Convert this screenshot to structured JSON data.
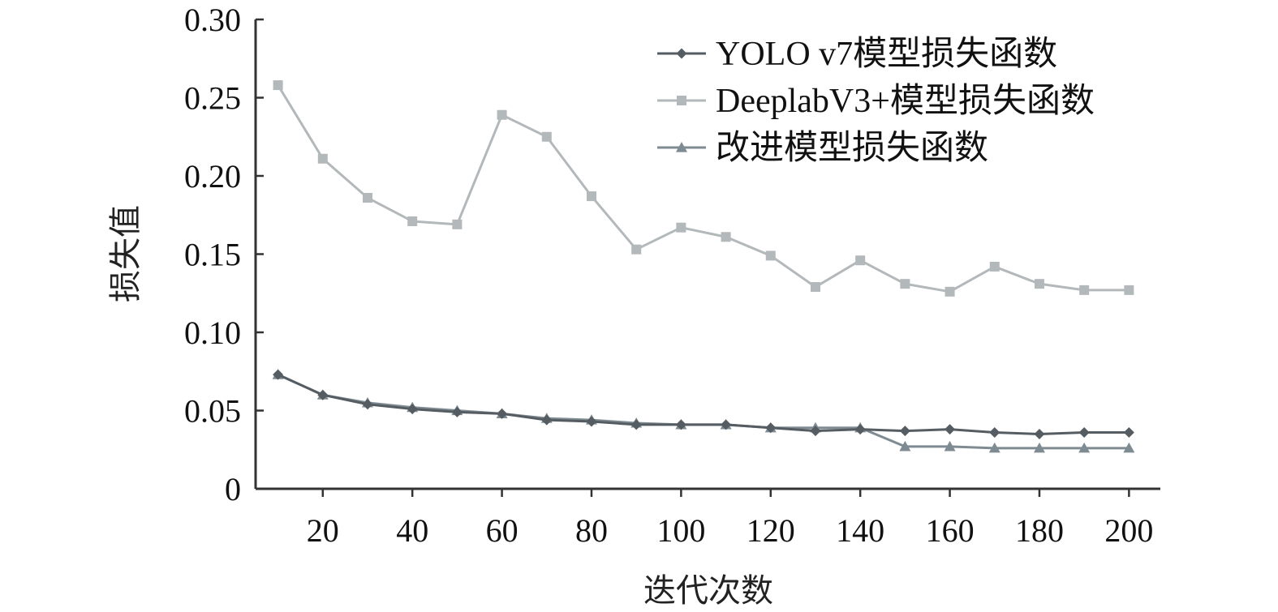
{
  "chart_data": {
    "type": "line",
    "title": "",
    "xlabel": "迭代次数",
    "ylabel": "损失值",
    "xlim": [
      5,
      207
    ],
    "ylim": [
      0,
      0.3
    ],
    "x_ticks": [
      20,
      40,
      60,
      80,
      100,
      120,
      140,
      160,
      180,
      200
    ],
    "x_tick_labels": [
      "20",
      "40",
      "60",
      "80",
      "100",
      "120",
      "140",
      "160",
      "180",
      "200"
    ],
    "y_ticks": [
      0,
      0.05,
      0.1,
      0.15,
      0.2,
      0.25,
      0.3
    ],
    "y_tick_labels": [
      "0",
      "0.05",
      "0.10",
      "0.15",
      "0.20",
      "0.25",
      "0.30"
    ],
    "grid": false,
    "legend_position": "top-right",
    "x": [
      10,
      20,
      30,
      40,
      50,
      60,
      70,
      80,
      90,
      100,
      110,
      120,
      130,
      140,
      150,
      160,
      170,
      180,
      190,
      200
    ],
    "series": [
      {
        "name": "YOLO v7模型损失函数",
        "marker": "diamond",
        "color": "#555d63",
        "values": [
          0.073,
          0.06,
          0.054,
          0.051,
          0.049,
          0.048,
          0.044,
          0.043,
          0.041,
          0.041,
          0.041,
          0.039,
          0.037,
          0.038,
          0.037,
          0.038,
          0.036,
          0.035,
          0.036,
          0.036
        ]
      },
      {
        "name": "DeeplabV3+模型损失函数",
        "marker": "square",
        "color": "#b3b8bb",
        "values": [
          0.258,
          0.211,
          0.186,
          0.171,
          0.169,
          0.239,
          0.225,
          0.187,
          0.153,
          0.167,
          0.161,
          0.149,
          0.129,
          0.146,
          0.131,
          0.126,
          0.142,
          0.131,
          0.127,
          0.127
        ]
      },
      {
        "name": "改进模型损失函数",
        "marker": "triangle",
        "color": "#7f8b92",
        "values": [
          0.073,
          0.06,
          0.055,
          0.052,
          0.05,
          0.048,
          0.045,
          0.044,
          0.042,
          0.041,
          0.041,
          0.039,
          0.039,
          0.039,
          0.027,
          0.027,
          0.026,
          0.026,
          0.026,
          0.026
        ]
      }
    ]
  }
}
